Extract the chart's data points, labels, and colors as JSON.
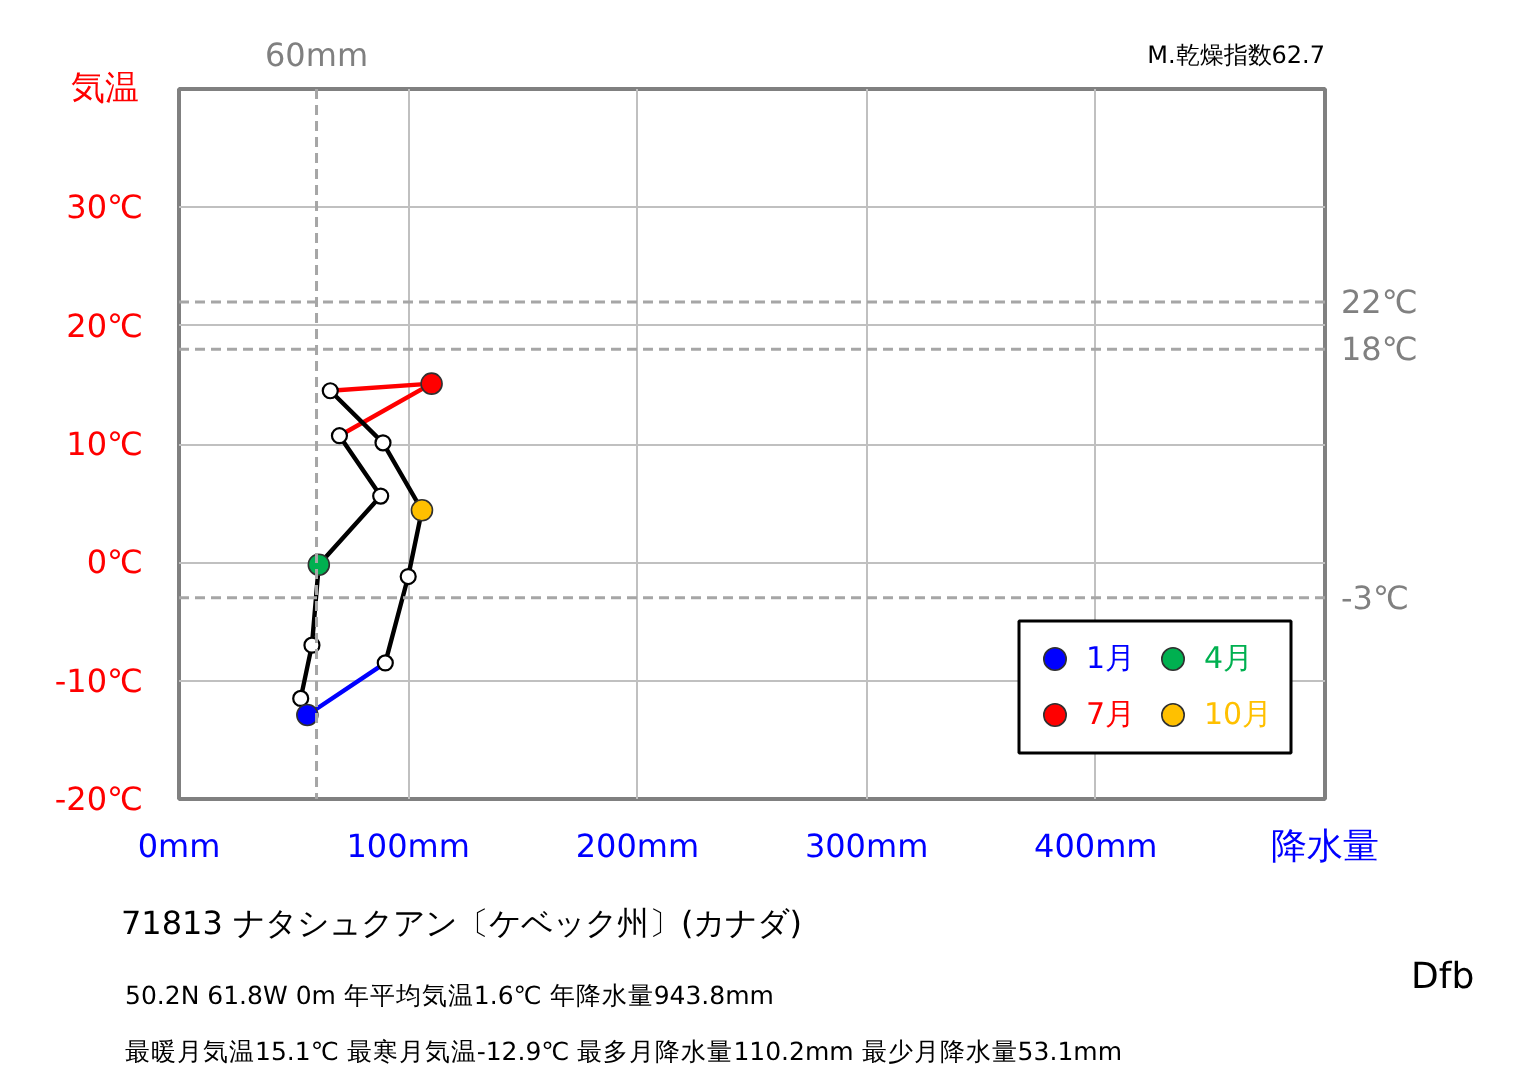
{
  "chart_data": {
    "type": "scatter",
    "title": "71813  ナタシュクアン〔ケベック州〕(カナダ)",
    "xlabel": "降水量",
    "ylabel": "気温",
    "annotations": [
      "M.乾燥指数62.7",
      "50.2N  61.8W 0m  年平均気温1.6℃ 年降水量943.8mm",
      "最暖月気温15.1℃ 最寒月気温-12.9℃ 最多月降水量110.2mm 最少月降水量53.1mm",
      "Dfb"
    ],
    "xlim": [
      0,
      500
    ],
    "ylim": [
      -20,
      40
    ],
    "xticks": [
      {
        "value": 0,
        "label": "0mm"
      },
      {
        "value": 100,
        "label": "100mm"
      },
      {
        "value": 200,
        "label": "200mm"
      },
      {
        "value": 300,
        "label": "300mm"
      },
      {
        "value": 400,
        "label": "400mm"
      }
    ],
    "yticks": [
      {
        "value": -20,
        "label": "-20℃"
      },
      {
        "value": -10,
        "label": "-10℃"
      },
      {
        "value": 0,
        "label": "0℃"
      },
      {
        "value": 10,
        "label": "10℃"
      },
      {
        "value": 20,
        "label": "20℃"
      },
      {
        "value": 30,
        "label": "30℃"
      }
    ],
    "grid": true,
    "legend": "bottom right",
    "ref_lines": [
      {
        "axis": "x",
        "value": 60,
        "label": "60mm",
        "color": "#a6a6a6",
        "line_style": "dashed"
      },
      {
        "axis": "y",
        "value": 22,
        "label": "22℃",
        "color": "#a6a6a6",
        "line_style": "dashed"
      },
      {
        "axis": "y",
        "value": 18,
        "label": "18℃",
        "color": "#a6a6a6",
        "line_style": "dashed"
      },
      {
        "axis": "y",
        "value": -3,
        "label": "-3℃",
        "color": "#a6a6a6",
        "line_style": "dashed"
      }
    ],
    "series": [
      {
        "type": "line",
        "color": "#000000",
        "x": [
          56,
          53.1,
          58,
          61,
          88,
          70
        ],
        "values": [
          -12.9,
          -11.5,
          -7.0,
          -0.2,
          5.6,
          10.7
        ]
      },
      {
        "type": "line",
        "color": "#ff0000",
        "x": [
          70,
          110.2,
          66
        ],
        "values": [
          10.7,
          15.1,
          14.5
        ]
      },
      {
        "type": "line",
        "color": "#000000",
        "x": [
          66,
          89,
          106,
          100,
          90
        ],
        "values": [
          14.5,
          10.1,
          4.4,
          -1.2,
          -8.5
        ]
      },
      {
        "type": "line",
        "color": "#0000ff",
        "x": [
          90,
          56
        ],
        "values": [
          -8.5,
          -12.9
        ]
      },
      {
        "color": "#ffffff",
        "marker": "circle",
        "x": [
          53.1,
          58,
          88,
          70,
          66,
          89,
          100,
          90
        ],
        "values": [
          -11.5,
          -7.0,
          5.6,
          10.7,
          14.5,
          10.1,
          -1.2,
          -8.5
        ]
      },
      {
        "name": "1月",
        "color": "#0000ff",
        "marker": "circle",
        "x": [
          56
        ],
        "values": [
          -12.9
        ]
      },
      {
        "name": "4月",
        "color": "#00b050",
        "marker": "circle",
        "x": [
          61
        ],
        "values": [
          -0.2
        ]
      },
      {
        "name": "7月",
        "color": "#ff0000",
        "marker": "circle",
        "x": [
          110.2
        ],
        "values": [
          15.1
        ]
      },
      {
        "name": "10月",
        "color": "#ffc000",
        "marker": "circle",
        "x": [
          106
        ],
        "values": [
          4.4
        ]
      }
    ]
  }
}
